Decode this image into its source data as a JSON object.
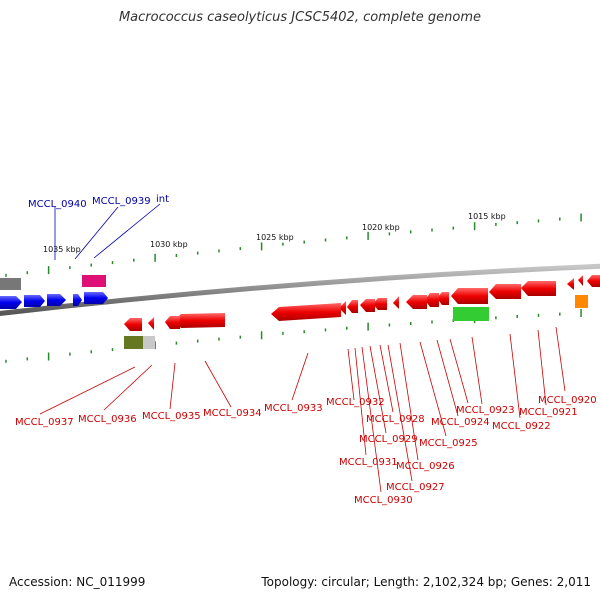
{
  "title": "Macrococcus caseolyticus JCSC5402, complete genome",
  "footer": {
    "accession": "Accession: NC_011999",
    "topology": "Topology: circular; Length: 2,102,324 bp; Genes: 2,011"
  },
  "colors": {
    "forward_gene": "#0000ee",
    "reverse_gene": "#ee0000",
    "label_forward": "#0000aa",
    "label_reverse": "#cc0000",
    "tick": "#2a8a2a",
    "backbone": "#888888",
    "magenta": "#dd1177",
    "green": "#33cc33",
    "orange": "#ff8800",
    "olive": "#667722",
    "grey": "#777777"
  },
  "ruler_labels": [
    "1035 kbp",
    "1030 kbp",
    "1025 kbp",
    "1020 kbp",
    "1015 kbp"
  ],
  "forward_labels": [
    "MCCL_0940",
    "MCCL_0939",
    "int"
  ],
  "reverse_labels": [
    "MCCL_0937",
    "MCCL_0936",
    "MCCL_0935",
    "MCCL_0934",
    "MCCL_0933",
    "MCCL_0932",
    "MCCL_0931",
    "MCCL_0930",
    "MCCL_0929",
    "MCCL_0928",
    "MCCL_0927",
    "MCCL_0926",
    "MCCL_0925",
    "MCCL_0924",
    "MCCL_0923",
    "MCCL_0922",
    "MCCL_0921",
    "MCCL_0920"
  ]
}
